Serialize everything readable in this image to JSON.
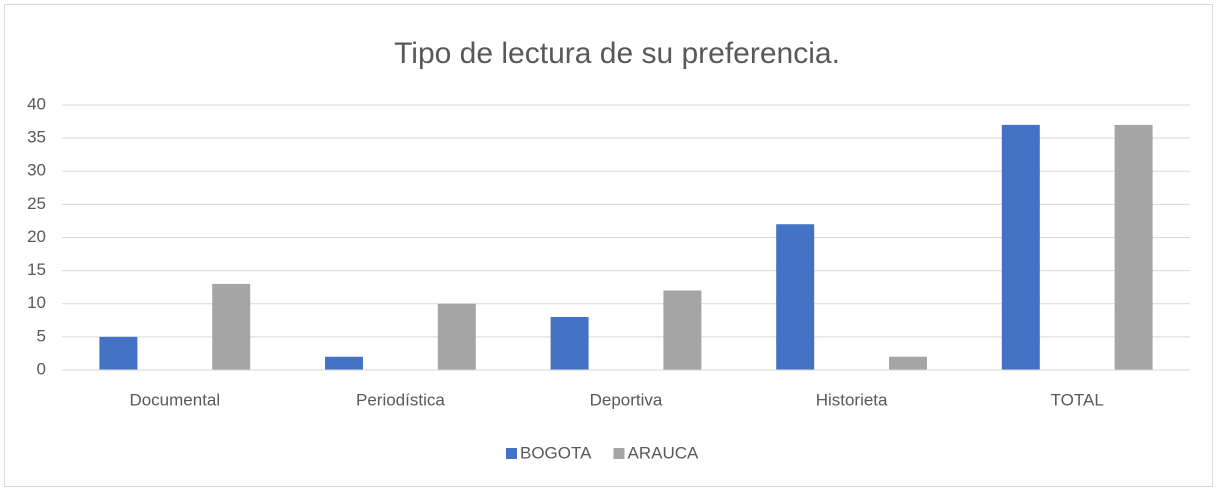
{
  "chart_data": {
    "type": "bar",
    "title": "Tipo de lectura de su preferencia.",
    "categories": [
      "Documental",
      "Periodística",
      "Deportiva",
      "Historieta",
      "TOTAL"
    ],
    "series": [
      {
        "name": "BOGOTA",
        "color": "#4472c4",
        "values": [
          5,
          2,
          8,
          22,
          37
        ]
      },
      {
        "name": "ARAUCA",
        "color": "#a5a5a5",
        "values": [
          13,
          10,
          12,
          2,
          37
        ]
      }
    ],
    "ylim": [
      0,
      40
    ],
    "yticks": [
      0,
      5,
      10,
      15,
      20,
      25,
      30,
      35,
      40
    ],
    "grid": true,
    "legend": "bottom"
  }
}
